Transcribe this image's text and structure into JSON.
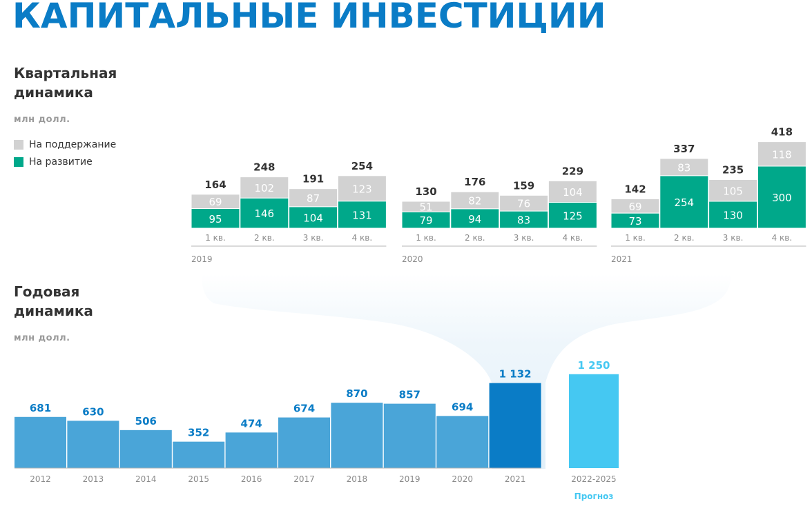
{
  "page_title": "КАПИТАЛЬНЫЕ ИНВЕСТИЦИИ",
  "colors": {
    "title": "#0a7cc6",
    "maintenance": "#d2d2d2",
    "development": "#00a88a",
    "annual": "#4aa5d8",
    "annual_highlight": "#0a7cc6",
    "forecast": "#45c8f2",
    "axis_line": "#b5b5b5",
    "tick_text": "#8a8a8a"
  },
  "quarterly": {
    "title_line1": "Квартальная",
    "title_line2": "динамика",
    "unit": "млн долл.",
    "legend": [
      {
        "label": "На поддержание",
        "color": "#d2d2d2"
      },
      {
        "label": "На развитие",
        "color": "#00a88a"
      }
    ]
  },
  "annual": {
    "title_line1": "Годовая",
    "title_line2": "динамика",
    "unit": "млн долл.",
    "forecast_label": "Прогноз"
  },
  "chart_data": [
    {
      "type": "bar",
      "stacked": true,
      "title": "Квартальная динамика",
      "ylabel": "млн долл.",
      "groups": [
        {
          "year": "2019",
          "categories": [
            "1 кв.",
            "2 кв.",
            "3 кв.",
            "4 кв."
          ],
          "development": [
            95,
            146,
            104,
            131
          ],
          "maintenance": [
            69,
            102,
            87,
            123
          ],
          "totals": [
            164,
            248,
            191,
            254
          ]
        },
        {
          "year": "2020",
          "categories": [
            "1 кв.",
            "2 кв.",
            "3 кв.",
            "4 кв."
          ],
          "development": [
            79,
            94,
            83,
            125
          ],
          "maintenance": [
            51,
            82,
            76,
            104
          ],
          "totals": [
            130,
            176,
            159,
            229
          ]
        },
        {
          "year": "2021",
          "categories": [
            "1 кв.",
            "2 кв.",
            "3 кв.",
            "4 кв."
          ],
          "development": [
            73,
            254,
            130,
            300
          ],
          "maintenance": [
            69,
            83,
            105,
            118
          ],
          "totals": [
            142,
            337,
            235,
            418
          ]
        }
      ],
      "series": [
        {
          "name": "На поддержание"
        },
        {
          "name": "На развитие"
        }
      ]
    },
    {
      "type": "bar",
      "title": "Годовая динамика",
      "ylabel": "млн долл.",
      "categories": [
        "2012",
        "2013",
        "2014",
        "2015",
        "2016",
        "2017",
        "2018",
        "2019",
        "2020",
        "2021"
      ],
      "values": [
        681,
        630,
        506,
        352,
        474,
        674,
        870,
        857,
        694,
        1132
      ],
      "value_labels": [
        "681",
        "630",
        "506",
        "352",
        "474",
        "674",
        "870",
        "857",
        "694",
        "1 132"
      ],
      "highlight": "2021",
      "forecast": {
        "category": "2022-2025",
        "value": 1250,
        "value_label": "1 250",
        "label": "Прогноз"
      }
    }
  ]
}
